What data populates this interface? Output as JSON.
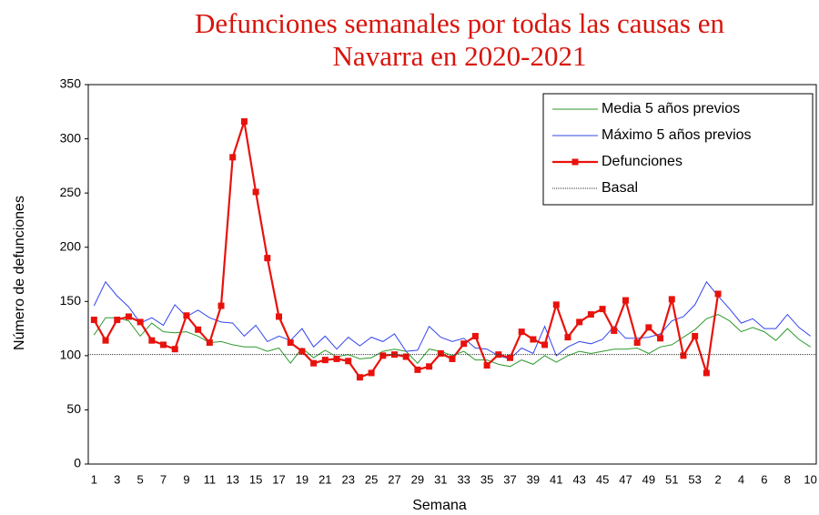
{
  "chart_data": {
    "type": "line",
    "title": "Defunciones semanales por todas las causas en Navarra en 2020-2021",
    "x_label": "Semana",
    "y_label": "Número de defunciones",
    "categories": [
      "1",
      null,
      "3",
      null,
      "5",
      null,
      "7",
      null,
      "9",
      null,
      "11",
      null,
      "13",
      null,
      "15",
      null,
      "17",
      null,
      "19",
      null,
      "21",
      null,
      "23",
      null,
      "25",
      null,
      "27",
      null,
      "29",
      null,
      "31",
      null,
      "33",
      null,
      "35",
      null,
      "37",
      null,
      "39",
      null,
      "41",
      null,
      "43",
      null,
      "45",
      null,
      "47",
      null,
      "49",
      null,
      "51",
      null,
      "53",
      null,
      "2",
      null,
      "4",
      null,
      "6",
      null,
      "8",
      null,
      "10"
    ],
    "ylim": [
      0,
      350
    ],
    "yticks": [
      0,
      50,
      100,
      150,
      200,
      250,
      300,
      350
    ],
    "legend": "upper right",
    "series": [
      {
        "name": "Media 5 años previos",
        "color": "#2e9a2e",
        "values": [
          119,
          135,
          135,
          132,
          118,
          130,
          122,
          121,
          122,
          118,
          112,
          113,
          110,
          108,
          108,
          104,
          107,
          93,
          107,
          98,
          105,
          99,
          101,
          97,
          98,
          104,
          106,
          104,
          93,
          106,
          104,
          100,
          104,
          96,
          96,
          92,
          90,
          96,
          92,
          100,
          94,
          100,
          104,
          102,
          104,
          106,
          106,
          107,
          102,
          108,
          110,
          117,
          124,
          134,
          138,
          132,
          122,
          126,
          122,
          114,
          125,
          115,
          108
        ]
      },
      {
        "name": "Máximo 5 años previos",
        "color": "#3344ee",
        "values": [
          146,
          168,
          155,
          145,
          130,
          135,
          128,
          147,
          136,
          142,
          135,
          131,
          130,
          118,
          128,
          113,
          118,
          114,
          125,
          108,
          118,
          106,
          117,
          109,
          117,
          113,
          120,
          104,
          105,
          127,
          117,
          113,
          116,
          107,
          106,
          100,
          97,
          107,
          102,
          127,
          100,
          108,
          113,
          111,
          115,
          127,
          116,
          116,
          117,
          120,
          132,
          136,
          147,
          168,
          155,
          143,
          130,
          134,
          125,
          125,
          138,
          126,
          118
        ]
      },
      {
        "name": "Defunciones",
        "color": "#e8120c",
        "marker": "square",
        "values": [
          133,
          114,
          133,
          136,
          131,
          114,
          110,
          106,
          137,
          124,
          112,
          146,
          283,
          316,
          251,
          190,
          136,
          112,
          104,
          93,
          96,
          97,
          95,
          80,
          84,
          100,
          101,
          99,
          87,
          90,
          102,
          97,
          111,
          118,
          91,
          101,
          98,
          122,
          115,
          110,
          147,
          117,
          131,
          138,
          143,
          123,
          151,
          112,
          126,
          116,
          152,
          100,
          118,
          84,
          157,
          null,
          null,
          null,
          null,
          null,
          null,
          null,
          null
        ]
      },
      {
        "name": "Basal",
        "color": "#333333",
        "style": "dotted",
        "value": 101
      }
    ]
  }
}
